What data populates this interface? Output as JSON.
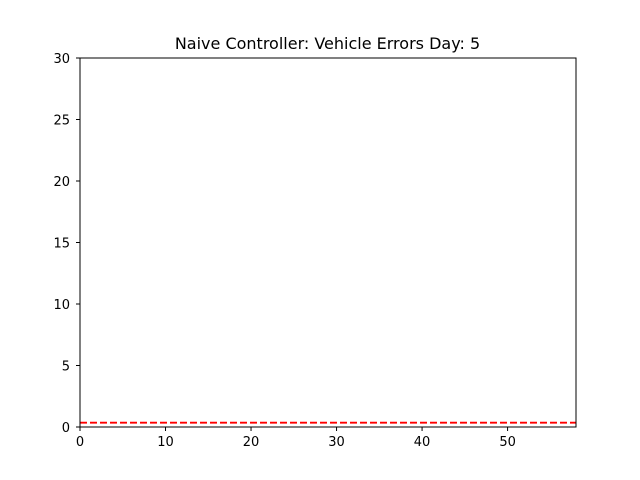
{
  "chart_data": {
    "type": "line",
    "title": "Naive Controller: Vehicle Errors Day: 5",
    "xlabel": "",
    "ylabel": "",
    "xlim": [
      0,
      58
    ],
    "ylim": [
      0,
      30
    ],
    "xticks": [
      0,
      10,
      20,
      30,
      40,
      50
    ],
    "yticks": [
      0,
      5,
      10,
      15,
      20,
      25,
      30
    ],
    "grid": false,
    "series": [
      {
        "x": [
          0,
          58
        ],
        "y": [
          0.35,
          0.35
        ],
        "color": "#ff0000",
        "linestyle": "dashed"
      }
    ]
  }
}
